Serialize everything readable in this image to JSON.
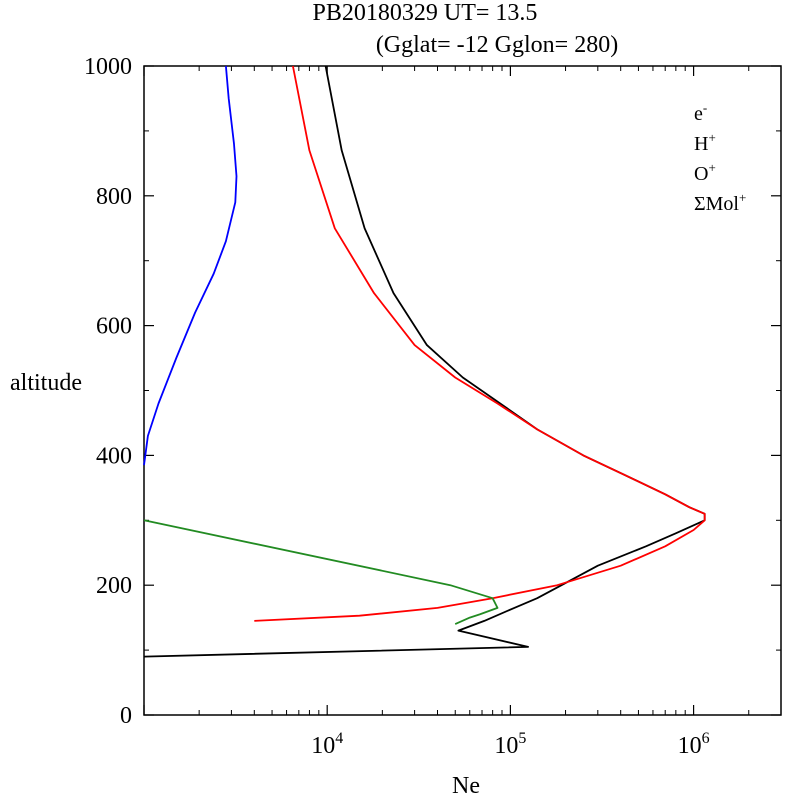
{
  "chart_data": {
    "type": "line",
    "title_line1": "PB20180329   UT=  13.5",
    "title_line2": "(Gglat= -12   Gglon=  280)",
    "xlabel": "Ne",
    "ylabel": "altitude",
    "xscale": "log",
    "xlim": [
      1000,
      3000000
    ],
    "ylim": [
      0,
      1000
    ],
    "x_ticks": [
      {
        "base": "10",
        "exp": "4",
        "value": 10000
      },
      {
        "base": "10",
        "exp": "5",
        "value": 100000
      },
      {
        "base": "10",
        "exp": "6",
        "value": 1000000
      }
    ],
    "y_ticks": [
      "0",
      "200",
      "400",
      "600",
      "800",
      "1000"
    ],
    "legend_position": "top-right",
    "series": [
      {
        "name": "e",
        "sup": "-",
        "color": "#000000",
        "points": [
          [
            1000,
            90
          ],
          [
            125000,
            105
          ],
          [
            52000,
            130
          ],
          [
            72000,
            145
          ],
          [
            105000,
            165
          ],
          [
            140000,
            180
          ],
          [
            190000,
            200
          ],
          [
            300000,
            230
          ],
          [
            550000,
            260
          ],
          [
            800000,
            280
          ],
          [
            1150000,
            300
          ],
          [
            1150000,
            310
          ],
          [
            950000,
            320
          ],
          [
            700000,
            340
          ],
          [
            420000,
            370
          ],
          [
            250000,
            400
          ],
          [
            140000,
            440
          ],
          [
            88000,
            480
          ],
          [
            55000,
            520
          ],
          [
            35000,
            570
          ],
          [
            23000,
            650
          ],
          [
            16000,
            750
          ],
          [
            12000,
            870
          ],
          [
            9800,
            1000
          ]
        ]
      },
      {
        "name": "H",
        "sup": "+",
        "color": "#0000ff",
        "points": [
          [
            1000,
            385
          ],
          [
            1050,
            430
          ],
          [
            1200,
            480
          ],
          [
            1500,
            550
          ],
          [
            1900,
            620
          ],
          [
            2400,
            680
          ],
          [
            2800,
            730
          ],
          [
            3150,
            790
          ],
          [
            3200,
            830
          ],
          [
            3100,
            880
          ],
          [
            2900,
            950
          ],
          [
            2800,
            1000
          ]
        ]
      },
      {
        "name": "O",
        "sup": "+",
        "color": "#ff0000",
        "points": [
          [
            4000,
            145
          ],
          [
            15000,
            153
          ],
          [
            40000,
            165
          ],
          [
            80000,
            180
          ],
          [
            180000,
            200
          ],
          [
            400000,
            230
          ],
          [
            700000,
            260
          ],
          [
            1000000,
            285
          ],
          [
            1150000,
            300
          ],
          [
            1150000,
            310
          ],
          [
            950000,
            320
          ],
          [
            700000,
            340
          ],
          [
            420000,
            370
          ],
          [
            250000,
            400
          ],
          [
            140000,
            440
          ],
          [
            85000,
            480
          ],
          [
            50000,
            520
          ],
          [
            30000,
            570
          ],
          [
            18000,
            650
          ],
          [
            11000,
            750
          ],
          [
            8000,
            870
          ],
          [
            6500,
            1000
          ]
        ]
      },
      {
        "name": "ΣMol",
        "sup": "+",
        "color": "#228b22",
        "points": [
          [
            1000,
            300
          ],
          [
            47000,
            200
          ],
          [
            80000,
            180
          ],
          [
            85000,
            165
          ],
          [
            68000,
            155
          ],
          [
            60000,
            150
          ],
          [
            50000,
            140
          ]
        ]
      }
    ]
  }
}
